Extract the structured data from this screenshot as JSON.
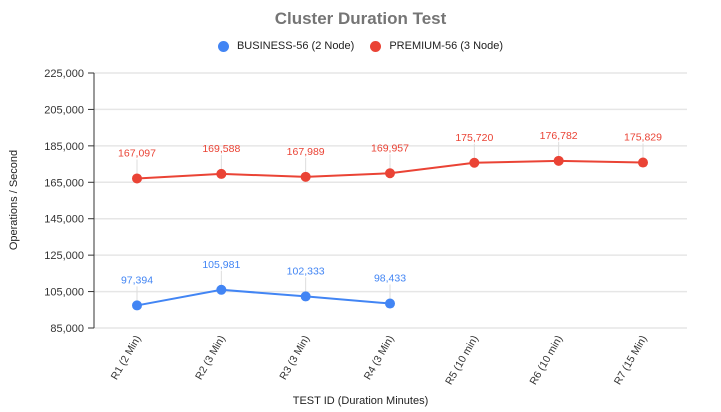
{
  "chart_data": {
    "type": "line",
    "title": "Cluster Duration Test",
    "xlabel": "TEST ID (Duration Minutes)",
    "ylabel": "Operations / Second",
    "ylim": [
      85000,
      225000
    ],
    "yticks": [
      "225,000",
      "205,000",
      "185,000",
      "165,000",
      "145,000",
      "125,000",
      "105,000",
      "85,000"
    ],
    "ytick_values": [
      225000,
      205000,
      185000,
      165000,
      145000,
      125000,
      105000,
      85000
    ],
    "categories": [
      "R1 (2 Min)",
      "R2 (3 Min)",
      "R3 (3 Min)",
      "R4 (3 Min)",
      "R5 (10 min)",
      "R6 (10 min)",
      "R7 (15 Min)"
    ],
    "grid": true,
    "legend_position": "top",
    "series": [
      {
        "name": "BUSINESS-56 (2 Node)",
        "color": "#4285f4",
        "values": [
          97394,
          105981,
          102333,
          98433,
          null,
          null,
          null
        ],
        "labels": [
          "97,394",
          "105,981",
          "102,333",
          "98,433",
          null,
          null,
          null
        ]
      },
      {
        "name": "PREMIUM-56 (3 Node)",
        "color": "#ea4335",
        "values": [
          167097,
          169588,
          167989,
          169957,
          175720,
          176782,
          175829
        ],
        "labels": [
          "167,097",
          "169,588",
          "167,989",
          "169,957",
          "175,720",
          "176,782",
          "175,829"
        ]
      }
    ]
  }
}
